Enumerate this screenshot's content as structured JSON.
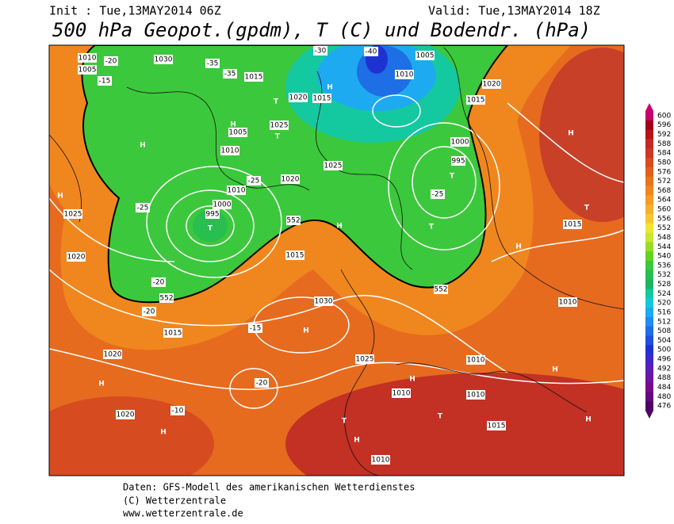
{
  "header": {
    "init": "Init : Tue,13MAY2014 06Z",
    "valid": "Valid: Tue,13MAY2014 18Z",
    "title": "500 hPa Geopot.(gpdm), T (C) und Bodendr. (hPa)"
  },
  "footer": [
    "Daten: GFS-Modell des amerikanischen Wetterdienstes",
    "(C) Wetterzentrale",
    "www.wetterzentrale.de"
  ],
  "colorbar": {
    "levels": [
      600,
      596,
      592,
      588,
      584,
      580,
      576,
      572,
      568,
      564,
      560,
      556,
      552,
      548,
      544,
      540,
      536,
      532,
      528,
      524,
      520,
      516,
      512,
      508,
      504,
      500,
      496,
      492,
      488,
      484,
      480,
      476
    ],
    "colors": [
      "#c8006e",
      "#a0001e",
      "#b41414",
      "#c32828",
      "#cd3723",
      "#d74b20",
      "#e1601e",
      "#eb731e",
      "#f0871e",
      "#f59b26",
      "#f5b02c",
      "#f5c832",
      "#f0e632",
      "#c8e632",
      "#96dc28",
      "#64d21e",
      "#3cc83c",
      "#28be50",
      "#1eb464",
      "#14c8a0",
      "#14c8dc",
      "#1eaaf0",
      "#1e8cf0",
      "#1e6ee6",
      "#1e50dc",
      "#1e32d2",
      "#3c28c8",
      "#5a1eb4",
      "#6e14a0",
      "#780a8c",
      "#640a78",
      "#500064"
    ]
  },
  "map": {
    "labels": [
      "1010",
      "1005",
      "-20",
      "-15",
      "1030",
      "-35",
      "-35",
      "1015",
      "-30",
      "-40",
      "1005",
      "1010",
      "1020",
      "1015",
      "1025",
      "H",
      "T",
      "1005",
      "1010",
      "H",
      "H",
      "T",
      "1020",
      "1025",
      "H",
      "1010",
      "1000",
      "995",
      "T",
      "-25",
      "1020",
      "1000",
      "995",
      "T",
      "1025",
      "H",
      "-25",
      "1015",
      "1020",
      "1015",
      "1025",
      "T",
      "H",
      "-25",
      "-20",
      "1030",
      "H",
      "-15",
      "1015",
      "1020",
      "H",
      "1020",
      "H",
      "T",
      "-20",
      "-10",
      "1025",
      "H",
      "1010",
      "1010",
      "H",
      "1015",
      "1010",
      "H",
      "T",
      "H",
      "1015",
      "1010",
      "T",
      "H",
      "-20",
      "1010",
      "H",
      "552",
      "552",
      "552"
    ]
  }
}
